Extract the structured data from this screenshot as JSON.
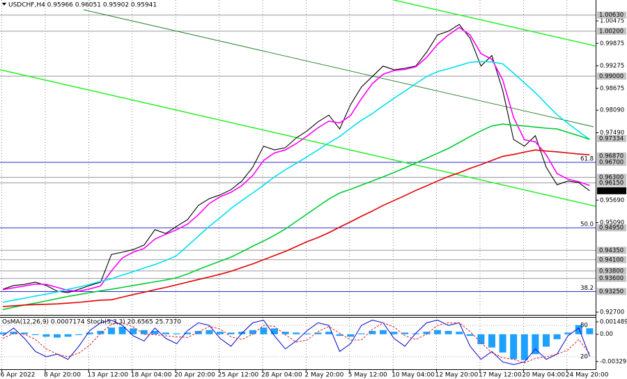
{
  "chart_data": [
    {
      "type": "line",
      "title": "USDCHF,H4  0.95966 0.96051 0.95902 0.95941",
      "categories": [
        null,
        "6 Apr 2022",
        null,
        null,
        null,
        "8 Apr 20:00",
        null,
        null,
        null,
        "13 Apr 12:00",
        null,
        null,
        null,
        "18 Apr 04:00",
        null,
        null,
        null,
        "20 Apr 20:00",
        null,
        null,
        null,
        "25 Apr 12:00",
        null,
        null,
        null,
        "28 Apr 04:00",
        null,
        null,
        null,
        "2 May 20:00",
        null,
        null,
        null,
        "5 May 12:00",
        null,
        null,
        null,
        "10 May 04:00",
        null,
        null,
        null,
        "12 May 20:00",
        null,
        null,
        null,
        "17 May 12:00",
        null,
        null,
        null,
        "20 May 04:00",
        null,
        null,
        null,
        "24 May 20:00",
        null
      ],
      "series": [
        {
          "color": "#000000",
          "values": [
            0.9331,
            0.9341,
            0.9344,
            0.935,
            0.9341,
            0.9326,
            0.9322,
            0.9331,
            0.9341,
            0.935,
            0.9424,
            0.943,
            0.9437,
            0.9449,
            0.949,
            0.948,
            0.9499,
            0.9517,
            0.9555,
            0.9573,
            0.9583,
            0.9597,
            0.962,
            0.9657,
            0.9713,
            0.9703,
            0.9709,
            0.9735,
            0.9754,
            0.9778,
            0.9796,
            0.9759,
            0.9824,
            0.9871,
            0.9899,
            0.9927,
            0.9917,
            0.9921,
            0.9927,
            0.9964,
            1.001,
            1.002,
            1.0038,
            1.0001,
            0.9927,
            0.9955,
            0.9862,
            0.9731,
            0.9713,
            0.9741,
            0.9657,
            0.961,
            0.962,
            0.9616,
            0.95941
          ]
        },
        {
          "color": "#ff00ff",
          "values": [
            0.933,
            0.9335,
            0.934,
            0.9345,
            0.9344,
            0.9336,
            0.9328,
            0.9326,
            0.9332,
            0.934,
            0.938,
            0.9415,
            0.943,
            0.944,
            0.9465,
            0.9478,
            0.949,
            0.9505,
            0.953,
            0.956,
            0.9578,
            0.959,
            0.9608,
            0.9635,
            0.9675,
            0.9695,
            0.9703,
            0.972,
            0.974,
            0.9762,
            0.978,
            0.9775,
            0.9795,
            0.984,
            0.988,
            0.9905,
            0.9915,
            0.9918,
            0.9925,
            0.995,
            0.9985,
            1.001,
            1.003,
            1.001,
            0.996,
            0.9945,
            0.989,
            0.979,
            0.973,
            0.9725,
            0.969,
            0.964,
            0.9625,
            0.9618,
            0.9608
          ]
        },
        {
          "color": "#00e0f0",
          "values": [
            0.9296,
            0.9302,
            0.9307,
            0.9313,
            0.9318,
            0.9324,
            0.9331,
            0.9337,
            0.9344,
            0.9352,
            0.9359,
            0.9369,
            0.9378,
            0.9388,
            0.9397,
            0.9408,
            0.9421,
            0.9447,
            0.9473,
            0.9499,
            0.9522,
            0.9547,
            0.9568,
            0.9588,
            0.9609,
            0.9631,
            0.965,
            0.9667,
            0.9685,
            0.9703,
            0.9722,
            0.9739,
            0.9761,
            0.9782,
            0.98,
            0.9821,
            0.9841,
            0.986,
            0.988,
            0.9899,
            0.9912,
            0.992,
            0.9928,
            0.9937,
            0.9939,
            0.9938,
            0.9933,
            0.9908,
            0.9882,
            0.9856,
            0.9826,
            0.9797,
            0.9774,
            0.9752,
            0.9731
          ]
        },
        {
          "color": "#00cc33",
          "values": [
            0.9277,
            0.9283,
            0.9289,
            0.9294,
            0.93,
            0.9306,
            0.9312,
            0.9317,
            0.9322,
            0.9327,
            0.9331,
            0.9336,
            0.9341,
            0.9346,
            0.9351,
            0.9356,
            0.9362,
            0.9372,
            0.9384,
            0.9395,
            0.9406,
            0.9417,
            0.9431,
            0.9446,
            0.946,
            0.9475,
            0.9492,
            0.9512,
            0.9532,
            0.9552,
            0.9572,
            0.9588,
            0.9598,
            0.9609,
            0.962,
            0.9631,
            0.9643,
            0.9655,
            0.9668,
            0.9681,
            0.9694,
            0.9707,
            0.9723,
            0.9739,
            0.9754,
            0.9767,
            0.9772,
            0.9769,
            0.9767,
            0.9764,
            0.9761,
            0.9759,
            0.975,
            0.9741,
            0.9731
          ]
        },
        {
          "color": "#e00000",
          "values": [
            0.9285,
            0.9287,
            0.9289,
            0.929,
            0.9291,
            0.9292,
            0.9294,
            0.9296,
            0.9299,
            0.9302,
            0.9303,
            0.931,
            0.9317,
            0.9323,
            0.933,
            0.9336,
            0.9343,
            0.935,
            0.9357,
            0.9364,
            0.9371,
            0.9379,
            0.9389,
            0.9399,
            0.941,
            0.9421,
            0.9432,
            0.9445,
            0.9458,
            0.9469,
            0.9482,
            0.9497,
            0.9511,
            0.9526,
            0.954,
            0.9555,
            0.9568,
            0.9581,
            0.9595,
            0.9607,
            0.962,
            0.9632,
            0.9642,
            0.9654,
            0.9664,
            0.9675,
            0.9686,
            0.9691,
            0.9697,
            0.9703,
            0.97,
            0.9698,
            0.9695,
            0.9692,
            0.969
          ]
        }
      ],
      "ylim": [
        0.92626,
        1.01033
      ],
      "yticks": [
        1.00475,
        0.99875,
        0.99275,
        0.98675,
        {
          "value": 0.9809,
          "label": "0.98090"
        },
        {
          "value": 0.9749,
          "label": "0.97490"
        },
        {
          "value": 0.9569,
          "label": "0.95690"
        },
        {
          "value": 0.9509,
          "label": "0.95090"
        },
        {
          "value": 0.927,
          "label": "0.92700"
        }
      ],
      "levels": [
        {
          "value": 1.0063,
          "label": "1.00630",
          "style": "level"
        },
        {
          "value": 1.002,
          "label": "1.00200",
          "style": "level"
        },
        {
          "value": 0.99,
          "label": "0.99000",
          "style": "level"
        },
        {
          "value": 0.97334,
          "label": "0.97334",
          "style": "marker"
        },
        {
          "value": 0.9687,
          "label": "0.96870",
          "style": "marker"
        },
        {
          "value": 0.967,
          "label": "0.96700",
          "style": "fib",
          "fib": "61.8"
        },
        {
          "value": 0.963,
          "label": "0.96300",
          "style": "level"
        },
        {
          "value": 0.9615,
          "label": "0.96150",
          "style": "level"
        },
        {
          "value": 0.95941,
          "label": "0.95941",
          "style": "price"
        },
        {
          "value": 0.9495,
          "label": "0.94950",
          "style": "fib",
          "fib": "50.0"
        },
        {
          "value": 0.9435,
          "label": "0.94350",
          "style": "level"
        },
        {
          "value": 0.941,
          "label": "0.94100",
          "style": "level"
        },
        {
          "value": 0.938,
          "label": "0.93800",
          "style": "level"
        },
        {
          "value": 0.936,
          "label": "0.93600",
          "style": "level"
        },
        {
          "value": 0.9325,
          "label": "0.93250",
          "style": "fib",
          "fib": "38.2"
        }
      ],
      "grid": true
    },
    {
      "type": "oscillator",
      "title": "OsMA(12,26,9) 0.0007174 Stoch(5,3,3) 20.6565 25.7370",
      "series": [
        {
          "color": "#1ea0ff",
          "style": "bar",
          "values": [
            0.0002,
            0.0003,
            0.0002,
            -0.0001,
            -0.0003,
            -0.0004,
            -0.0003,
            -0.0001,
            0.0002,
            0.0004,
            0.0008,
            0.0009,
            0.0007,
            0.0005,
            0.0004,
            0.0002,
            0.0001,
            0.0002,
            0.0004,
            0.0005,
            0.0003,
            0.0002,
            0.0003,
            0.0005,
            0.0008,
            0.0007,
            0.0003,
            0.0002,
            0.0001,
            0.0002,
            0.0003,
            -0.0002,
            -0.0003,
            0.0001,
            0.0004,
            0.0005,
            0.0003,
            0.0002,
            0.0001,
            0.0003,
            0.0005,
            0.0004,
            0.0003,
            -0.0002,
            -0.0012,
            -0.0016,
            -0.0022,
            -0.003,
            -0.0031,
            -0.0024,
            -0.0015,
            -0.0006,
            0.0002,
            0.0011,
            0.0007174
          ]
        },
        {
          "color": "#1a1ad0",
          "style": "line",
          "axis": "y2",
          "values": [
            60,
            75,
            55,
            30,
            20,
            25,
            15,
            40,
            70,
            85,
            90,
            80,
            60,
            50,
            75,
            55,
            45,
            70,
            85,
            80,
            55,
            40,
            65,
            85,
            90,
            60,
            35,
            50,
            70,
            85,
            80,
            30,
            45,
            80,
            90,
            85,
            55,
            40,
            65,
            85,
            90,
            80,
            85,
            40,
            15,
            30,
            10,
            5,
            10,
            35,
            15,
            25,
            60,
            75,
            20.6565
          ]
        },
        {
          "color": "#e03030",
          "style": "dashed",
          "axis": "y2",
          "values": [
            55,
            65,
            63,
            53,
            35,
            25,
            20,
            27,
            42,
            65,
            82,
            85,
            77,
            63,
            62,
            60,
            58,
            57,
            67,
            78,
            73,
            58,
            53,
            63,
            80,
            78,
            62,
            48,
            52,
            68,
            78,
            65,
            52,
            52,
            72,
            85,
            77,
            60,
            53,
            63,
            80,
            85,
            85,
            68,
            47,
            28,
            18,
            15,
            8,
            17,
            20,
            25,
            33,
            53,
            25.737
          ]
        }
      ],
      "ylim": [
        -0.004216,
        0.002076
      ],
      "yticks": [
        0.001489,
        {
          "value": 0,
          "label": "0.00"
        },
        -0.003293
      ],
      "y2lim": [
        0,
        100
      ],
      "y2ticks": [
        80,
        20
      ]
    }
  ]
}
